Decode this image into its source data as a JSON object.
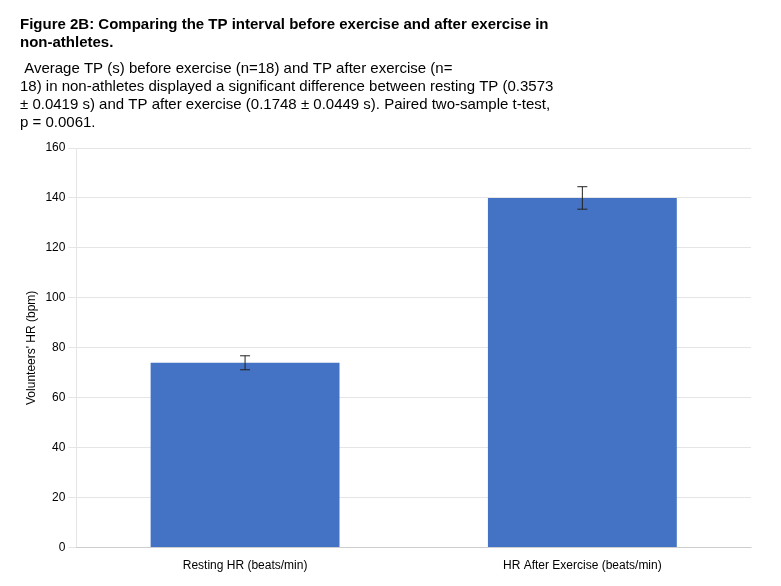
{
  "chart_data": {
    "type": "bar",
    "title": [
      "Figure 2B: Comparing the TP interval before exercise and after exercise in",
      "non-athletes."
    ],
    "subtitle": [
      " Average TP (s) before exercise (n=18) and TP after exercise (n=",
      "18) in non-athletes displayed a significant difference between resting TP (0.3573",
      "± 0.0419 s) and TP after exercise (0.1748 ± 0.0449 s). Paired two-sample t-test,",
      "p = 0.0061."
    ],
    "categories": [
      "Resting HR (beats/min)",
      "HR After Exercise (beats/min)"
    ],
    "values": [
      74.0,
      140.0
    ],
    "errors": [
      2.8,
      4.5
    ],
    "color": "#4472C4",
    "ylabel": "Volunteers' HR (bpm)",
    "ylim": [
      0,
      160
    ],
    "yticks": [
      0,
      20,
      40,
      60,
      80,
      100,
      120,
      140,
      160
    ],
    "grid": true
  }
}
